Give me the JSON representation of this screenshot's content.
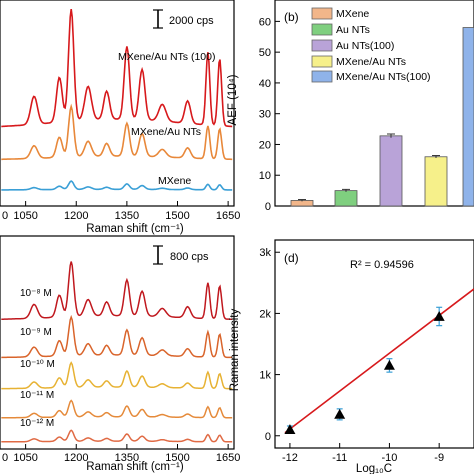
{
  "chart_data": [
    {
      "id": "a",
      "type": "line",
      "panel_label": "",
      "xlabel": "Raman shift (cm⁻¹)",
      "ylabel": "",
      "x_ticks": [
        "1050",
        "1200",
        "1350",
        "1500",
        "1650"
      ],
      "xlim": [
        900,
        1700
      ],
      "scale_bar_label": "2000 cps",
      "series": [
        {
          "name": "MXene/Au NTs (100)",
          "color": "#d7191c"
        },
        {
          "name": "MXene/Au NTs",
          "color": "#e8883a"
        },
        {
          "name": "MXene",
          "color": "#3a9fd6"
        }
      ],
      "peaks": [
        {
          "x": 1075,
          "amp": 0.25,
          "w": 14
        },
        {
          "x": 1150,
          "amp": 0.4,
          "w": 12
        },
        {
          "x": 1185,
          "amp": 1.0,
          "w": 11
        },
        {
          "x": 1235,
          "amp": 0.3,
          "w": 14
        },
        {
          "x": 1290,
          "amp": 0.25,
          "w": 12
        },
        {
          "x": 1350,
          "amp": 0.65,
          "w": 11
        },
        {
          "x": 1395,
          "amp": 0.45,
          "w": 12
        },
        {
          "x": 1455,
          "amp": 0.15,
          "w": 15
        },
        {
          "x": 1530,
          "amp": 0.2,
          "w": 12
        },
        {
          "x": 1590,
          "amp": 0.65,
          "w": 8
        },
        {
          "x": 1625,
          "amp": 0.6,
          "w": 8
        }
      ],
      "trace_scale": [
        1.6,
        0.72,
        0.12
      ]
    },
    {
      "id": "b",
      "type": "bar",
      "panel_label": "(b)",
      "xlabel": "",
      "ylabel": "AEF (10⁴)",
      "ylim": [
        0,
        65
      ],
      "y_ticks": [
        0,
        10,
        20,
        30,
        40,
        50,
        60
      ],
      "categories": [
        "MXene",
        "Au NTs",
        "Au NTs(100)",
        "MXene/Au NTs",
        "MXene/Au NTs(100)"
      ],
      "values": [
        1.8,
        5.0,
        22.8,
        16.0,
        58.0
      ],
      "errors": [
        0.3,
        0.4,
        0.6,
        0.4,
        1.2
      ],
      "colors": [
        "#f2b68a",
        "#7fcf7f",
        "#b9a3d8",
        "#f6f08a",
        "#8fb3ea"
      ],
      "legend_position": "top-right"
    },
    {
      "id": "c",
      "type": "line",
      "panel_label": "",
      "xlabel": "Raman shift (cm⁻¹)",
      "ylabel": "",
      "x_ticks": [
        "1050",
        "1200",
        "1350",
        "1500",
        "1650"
      ],
      "xlim": [
        900,
        1700
      ],
      "scale_bar_label": "800 cps",
      "series": [
        {
          "name": "10⁻⁸ M",
          "color": "#c0181e"
        },
        {
          "name": "10⁻⁹ M",
          "color": "#d9642b"
        },
        {
          "name": "10⁻¹⁰ M",
          "color": "#e7b233"
        },
        {
          "name": "10⁻¹¹ M",
          "color": "#e58a3a"
        },
        {
          "name": "10⁻¹² M",
          "color": "#e06a44"
        }
      ],
      "trace_scale": [
        1.0,
        0.7,
        0.45,
        0.3,
        0.2
      ]
    },
    {
      "id": "d",
      "type": "scatter",
      "panel_label": "(d)",
      "xlabel": "Log₁₀C",
      "ylabel": "Raman intensity",
      "annotation": "R² = 0.94596",
      "x_ticks": [
        -12,
        -11,
        -10,
        -9
      ],
      "y_ticks": [
        "0",
        "1k",
        "2k",
        "3k"
      ],
      "xlim": [
        -12.3,
        -8.3
      ],
      "ylim": [
        -200,
        3200
      ],
      "x": [
        -12,
        -11,
        -10,
        -9
      ],
      "y": [
        100,
        350,
        1150,
        1950
      ],
      "errors": [
        60,
        90,
        110,
        150
      ],
      "fit": {
        "x0": -12.1,
        "y0": 50,
        "x1": -8.3,
        "y1": 2400,
        "color": "#d7191c"
      },
      "marker_color": "#000000",
      "errorbar_color": "#3a9fd6"
    }
  ]
}
